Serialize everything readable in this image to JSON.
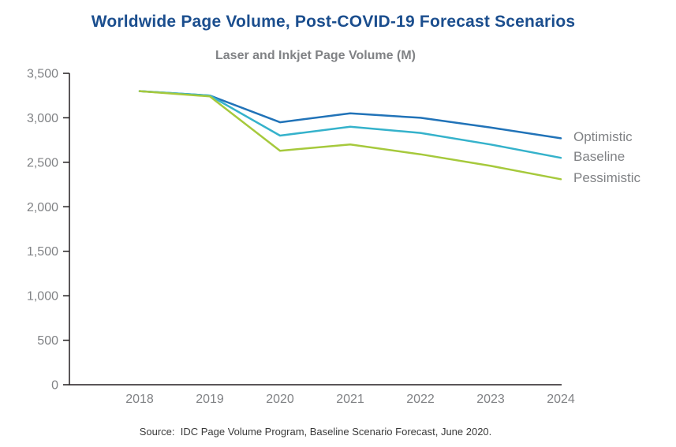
{
  "header": {
    "title": "Worldwide Page Volume, Post-COVID-19 Forecast Scenarios",
    "subtitle": "Laser and Inkjet Page Volume (M)"
  },
  "footer": {
    "source": "Source:  IDC Page Volume Program, Baseline Scenario Forecast, June 2020."
  },
  "colors": {
    "title": "#1B4E8E",
    "subtitle": "#808285",
    "axis_line": "#231F20",
    "tick_label": "#808285",
    "source_text": "#3A3A3A"
  },
  "chart_data": {
    "type": "line",
    "title": "Worldwide Page Volume, Post-COVID-19 Forecast Scenarios",
    "subtitle": "Laser and Inkjet Page Volume (M)",
    "xlabel": "",
    "ylabel": "",
    "x": [
      "2018",
      "2019",
      "2020",
      "2021",
      "2022",
      "2023",
      "2024"
    ],
    "series": [
      {
        "name": "Optimistic",
        "color": "#2173B8",
        "values": [
          3300,
          3250,
          2950,
          3050,
          3000,
          2890,
          2770
        ]
      },
      {
        "name": "Baseline",
        "color": "#35B2CB",
        "values": [
          3300,
          3250,
          2800,
          2900,
          2830,
          2700,
          2550
        ]
      },
      {
        "name": "Pessimistic",
        "color": "#A6C93C",
        "values": [
          3300,
          3240,
          2630,
          2700,
          2590,
          2460,
          2310
        ]
      }
    ],
    "ylim": [
      0,
      3500
    ],
    "ytick_step": 500,
    "ytick_labels": [
      "0",
      "500",
      "1,000",
      "1,500",
      "2,000",
      "2,500",
      "3,000",
      "3,500"
    ],
    "grid": false,
    "legend_position": "end-of-line-labels-right"
  }
}
